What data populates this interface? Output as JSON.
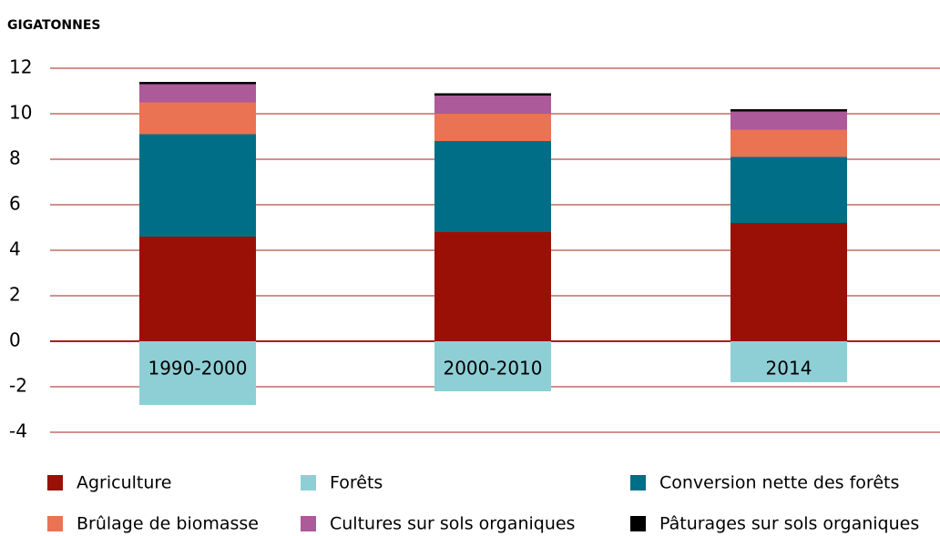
{
  "chart_data": {
    "type": "stacked_bar",
    "title": "GIGATONNES",
    "categories": [
      "1990-2000",
      "2000-2010",
      "2014"
    ],
    "series": [
      {
        "name": "Agriculture",
        "color": "#9b1006",
        "values": [
          4.6,
          4.8,
          5.2
        ]
      },
      {
        "name": "Forêts",
        "color": "#8ecfd6",
        "values": [
          -2.8,
          -2.2,
          -1.8
        ]
      },
      {
        "name": "Conversion nette des forêts",
        "color": "#006e87",
        "values": [
          4.5,
          4.0,
          2.9
        ]
      },
      {
        "name": "Brûlage de biomasse",
        "color": "#ea7353",
        "values": [
          1.4,
          1.2,
          1.2
        ]
      },
      {
        "name": "Cultures sur sols organiques",
        "color": "#ad5a9a",
        "values": [
          0.8,
          0.8,
          0.8
        ]
      },
      {
        "name": "Pâturages sur sols organiques",
        "color": "#000000",
        "values": [
          0.1,
          0.1,
          0.1
        ]
      }
    ],
    "ylim": [
      -4,
      12
    ],
    "yticks": [
      -4,
      -2,
      0,
      2,
      4,
      6,
      8,
      10,
      12
    ],
    "grid": true
  }
}
